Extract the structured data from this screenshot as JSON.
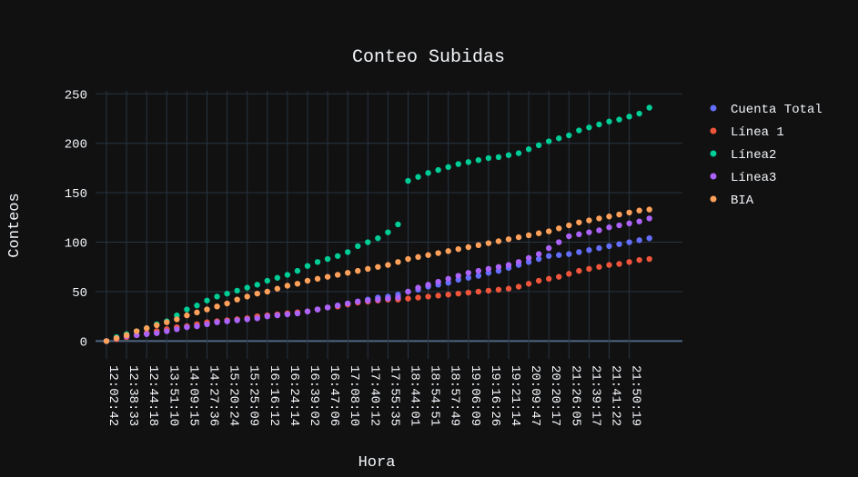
{
  "chart_data": {
    "type": "scatter",
    "title": "Conteo Subidas",
    "x_label": "Hora",
    "y_label": "Conteos",
    "categories": [
      "12:02:42",
      null,
      "12:38:33",
      null,
      "12:44:18",
      null,
      "13:51:10",
      null,
      "14:09:15",
      null,
      "14:27:36",
      null,
      "15:20:24",
      null,
      "15:25:09",
      null,
      "16:16:12",
      null,
      "16:24:14",
      null,
      "16:39:02",
      null,
      "16:47:06",
      null,
      "17:08:10",
      null,
      "17:40:12",
      null,
      "17:55:35",
      null,
      "18:44:01",
      null,
      "18:54:51",
      null,
      "18:57:49",
      null,
      "19:06:09",
      null,
      "19:16:26",
      null,
      "19:21:14",
      null,
      "20:09:47",
      null,
      "20:20:17",
      null,
      "21:26:05",
      null,
      "21:39:17",
      null,
      "21:41:22",
      null,
      "21:50:19",
      null,
      null
    ],
    "series": [
      {
        "name": "Cuenta Total",
        "color": "#636efa",
        "values": [
          0,
          2,
          4,
          6,
          8,
          10,
          12,
          14,
          15,
          17,
          19,
          20,
          21,
          22,
          23,
          25,
          26,
          27,
          28,
          29,
          30,
          32,
          34,
          36,
          38,
          40,
          42,
          44,
          45,
          47,
          50,
          52,
          55,
          57,
          59,
          62,
          64,
          66,
          69,
          71,
          74,
          77,
          80,
          83,
          86,
          87,
          88,
          90,
          92,
          94,
          96,
          98,
          100,
          102,
          104
        ]
      },
      {
        "name": "Línea 1",
        "color": "#ef553b",
        "values": [
          0,
          2,
          4,
          6,
          8,
          10,
          12,
          14,
          15,
          17,
          19,
          20,
          21,
          22,
          23,
          25,
          26,
          27,
          28,
          29,
          30,
          32,
          34,
          35,
          37,
          39,
          40,
          41,
          42,
          42,
          43,
          44,
          45,
          46,
          47,
          48,
          49,
          50,
          51,
          52,
          53,
          55,
          58,
          61,
          63,
          65,
          68,
          71,
          73,
          75,
          77,
          78,
          80,
          82,
          83
        ]
      },
      {
        "name": "Línea2",
        "color": "#00cc96",
        "values": [
          0,
          4,
          7,
          10,
          13,
          17,
          20,
          26,
          32,
          36,
          41,
          45,
          48,
          51,
          54,
          57,
          61,
          64,
          67,
          71,
          76,
          80,
          83,
          86,
          90,
          96,
          100,
          104,
          110,
          118,
          162,
          166,
          170,
          173,
          176,
          179,
          181,
          183,
          185,
          186,
          188,
          190,
          194,
          198,
          202,
          205,
          208,
          213,
          216,
          219,
          222,
          224,
          227,
          230,
          236
        ]
      },
      {
        "name": "Línea3",
        "color": "#ab63fa",
        "values": [
          0,
          3,
          5,
          6,
          7,
          8,
          10,
          12,
          14,
          15,
          17,
          19,
          20,
          21,
          22,
          23,
          25,
          26,
          27,
          28,
          30,
          32,
          34,
          36,
          38,
          40,
          41,
          42,
          43,
          44,
          50,
          54,
          57,
          60,
          63,
          66,
          69,
          71,
          73,
          75,
          77,
          80,
          84,
          88,
          94,
          100,
          106,
          108,
          110,
          112,
          115,
          117,
          119,
          121,
          124
        ]
      },
      {
        "name": "BIA",
        "color": "#ffa15a",
        "values": [
          0,
          3,
          6,
          10,
          13,
          16,
          19,
          22,
          26,
          29,
          32,
          35,
          38,
          42,
          45,
          48,
          50,
          53,
          56,
          58,
          61,
          63,
          65,
          67,
          69,
          71,
          73,
          75,
          77,
          80,
          83,
          85,
          87,
          89,
          91,
          93,
          95,
          97,
          99,
          101,
          103,
          105,
          107,
          109,
          111,
          114,
          117,
          120,
          122,
          124,
          126,
          128,
          130,
          132,
          133
        ]
      }
    ],
    "ylim": [
      -18,
      253
    ],
    "yticks": [
      0,
      50,
      100,
      150,
      200,
      250
    ],
    "grid": true,
    "legend": "right"
  }
}
